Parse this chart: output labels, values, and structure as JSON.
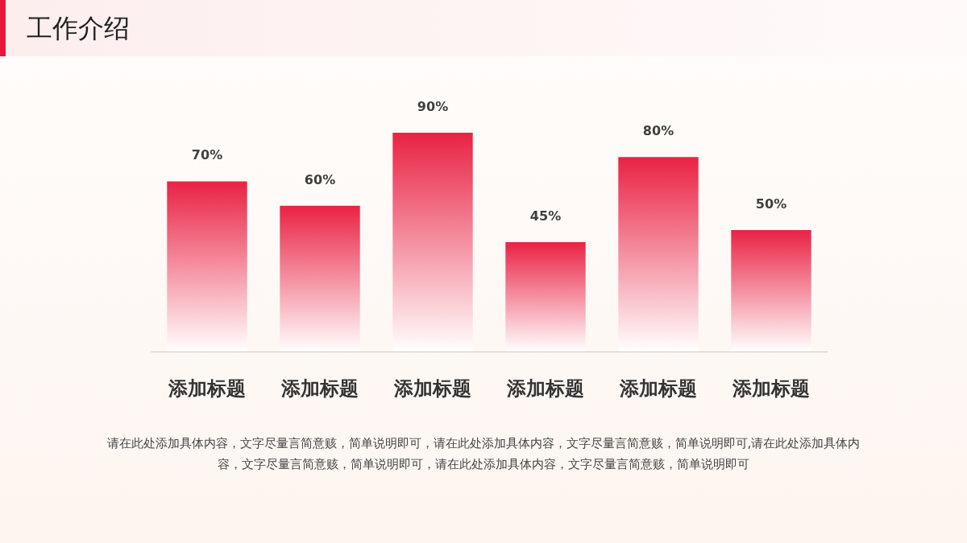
{
  "chart_data": {
    "type": "bar",
    "title": "工作介绍",
    "categories": [
      "添加标题",
      "添加标题",
      "添加标题",
      "添加标题",
      "添加标题",
      "添加标题"
    ],
    "values": [
      70,
      60,
      90,
      45,
      80,
      50
    ],
    "color": "#e8173a",
    "value_labels": [
      "70%",
      "60%",
      "90%",
      "45%",
      "80%",
      "50%"
    ],
    "annotations": [
      "请在此处添加具体内容，文字尽量言简意赅，简单说明即可，请在此处添加具体内容，文字尽量言简意赅，简单说明即可,请在此处添加具体内容，文字尽量言简意赅，简单说明即可，请在此处添加具体内容，文字尽量言简意赅，简单说明即可"
    ]
  }
}
